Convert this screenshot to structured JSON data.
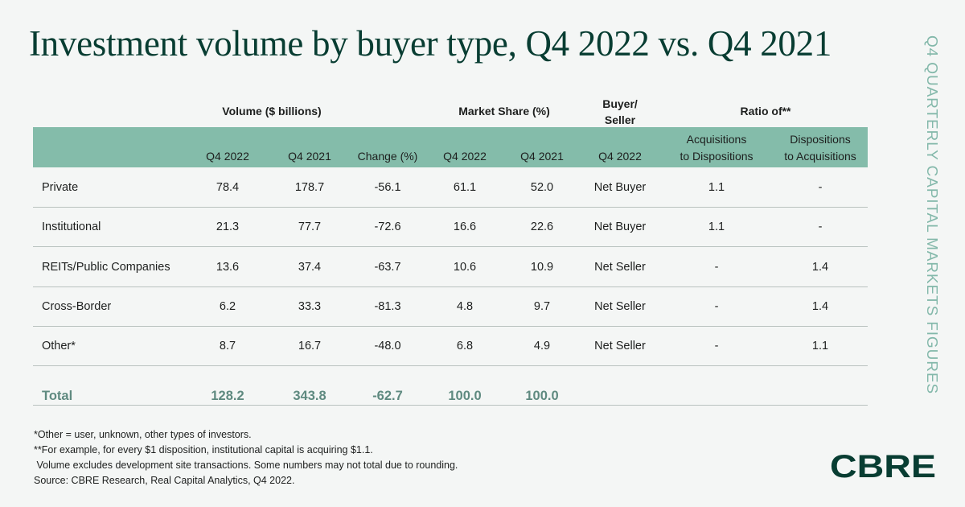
{
  "title": "Investment volume by buyer type, Q4 2022 vs. Q4 2021",
  "side_label": "Q4 QUARTERLY CAPITAL MARKETS FIGURES",
  "groups": {
    "volume": "Volume ($ billions)",
    "share": "Market Share (%)",
    "buyer_seller_1": "Buyer/",
    "buyer_seller_2": "Seller",
    "ratio": "Ratio of**"
  },
  "subheaders": {
    "vol_q4_2022": "Q4 2022",
    "vol_q4_2021": "Q4 2021",
    "change": "Change (%)",
    "share_q4_2022": "Q4 2022",
    "share_q4_2021": "Q4 2021",
    "bs_q4_2022": "Q4 2022",
    "acq_1": "Acquisitions",
    "acq_2": "to Dispositions",
    "disp_1": "Dispositions",
    "disp_2": "to Acquisitions"
  },
  "chart_data": {
    "type": "table",
    "title": "Investment volume by buyer type, Q4 2022 vs. Q4 2021",
    "columns": [
      "Volume Q4 2022",
      "Volume Q4 2021",
      "Change (%)",
      "Market Share Q4 2022",
      "Market Share Q4 2021",
      "Buyer/Seller Q4 2022",
      "Acquisitions to Dispositions",
      "Dispositions to Acquisitions"
    ],
    "rows": [
      {
        "label": "Private",
        "values": [
          "78.4",
          "178.7",
          "-56.1",
          "61.1",
          "52.0",
          "Net Buyer",
          "1.1",
          "-"
        ]
      },
      {
        "label": "Institutional",
        "values": [
          "21.3",
          "77.7",
          "-72.6",
          "16.6",
          "22.6",
          "Net Buyer",
          "1.1",
          "-"
        ]
      },
      {
        "label": "REITs/Public Companies",
        "values": [
          "13.6",
          "37.4",
          "-63.7",
          "10.6",
          "10.9",
          "Net Seller",
          "-",
          "1.4"
        ]
      },
      {
        "label": "Cross-Border",
        "values": [
          "6.2",
          "33.3",
          "-81.3",
          "4.8",
          "9.7",
          "Net Seller",
          "-",
          "1.4"
        ]
      },
      {
        "label": "Other*",
        "values": [
          "8.7",
          "16.7",
          "-48.0",
          "6.8",
          "4.9",
          "Net Seller",
          "-",
          "1.1"
        ]
      }
    ],
    "total": {
      "label": "Total",
      "values": [
        "128.2",
        "343.8",
        "-62.7",
        "100.0",
        "100.0",
        "",
        "",
        ""
      ]
    }
  },
  "notes": [
    "*Other = user, unknown, other types of investors.",
    "**For example, for every $1 disposition, institutional capital is acquiring $1.1.",
    " Volume excludes development site transactions. Some numbers may not total due to rounding.",
    "Source: CBRE Research, Real Capital Analytics, Q4 2022."
  ],
  "logo": "CBRE",
  "colors": {
    "title": "#083d32",
    "header_band": "#84bcaa",
    "total": "#5f8a80",
    "side_label": "#83b8aa"
  }
}
